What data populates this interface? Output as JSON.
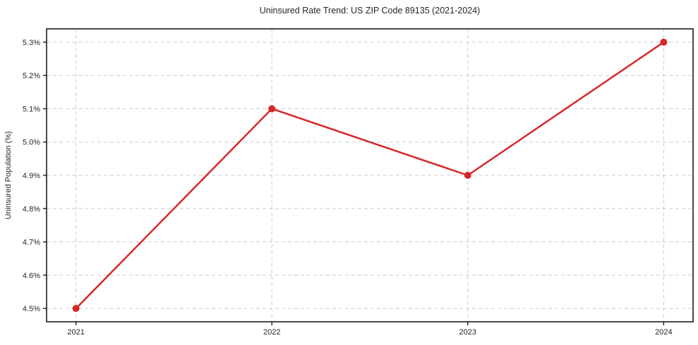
{
  "chart_data": {
    "type": "line",
    "title": "Uninsured Rate Trend: US ZIP Code 89135 (2021-2024)",
    "xlabel": "",
    "ylabel": "Uninsured Population (%)",
    "x": [
      2021,
      2022,
      2023,
      2024
    ],
    "values": [
      4.5,
      5.1,
      4.9,
      5.3
    ],
    "x_tick_labels": [
      "2021",
      "2022",
      "2023",
      "2024"
    ],
    "y_ticks": [
      4.5,
      4.6,
      4.7,
      4.8,
      4.9,
      5.0,
      5.1,
      5.2,
      5.3
    ],
    "y_tick_labels": [
      "4.5%",
      "4.6%",
      "4.7%",
      "4.8%",
      "4.9%",
      "5.0%",
      "5.1%",
      "5.2%",
      "5.3%"
    ],
    "xlim": [
      2020.85,
      2024.15
    ],
    "ylim": [
      4.46,
      5.34
    ],
    "grid": true,
    "grid_style": "dashed",
    "legend_position": "none",
    "line_color": "#d62728",
    "marker": "circle",
    "marker_size": 5,
    "line_width": 2.5,
    "grid_color": "#cccccc",
    "spine_color": "#1a1a1a",
    "background_color": "#ffffff"
  }
}
